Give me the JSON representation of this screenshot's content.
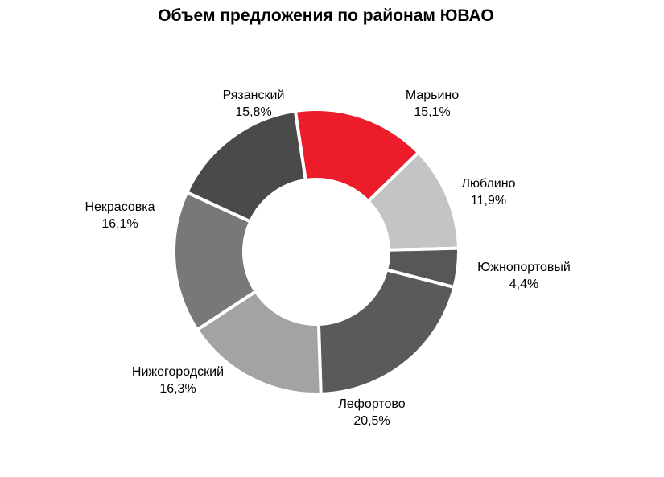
{
  "chart_data": {
    "type": "pie",
    "subtype": "donut",
    "title": "Объем предложения по районам ЮВАО",
    "slices": [
      {
        "label": "Марьино",
        "value": 15.1,
        "value_label": "15,1%",
        "color": "#ED1C2A"
      },
      {
        "label": "Люблино",
        "value": 11.9,
        "value_label": "11,9%",
        "color": "#C4C4C4"
      },
      {
        "label": "Южнопортовый",
        "value": 4.4,
        "value_label": "4,4%",
        "color": "#575757"
      },
      {
        "label": "Лефортово",
        "value": 20.5,
        "value_label": "20,5%",
        "color": "#5A5A5A"
      },
      {
        "label": "Нижегородский",
        "value": 16.3,
        "value_label": "16,3%",
        "color": "#A3A3A3"
      },
      {
        "label": "Некрасовка",
        "value": 16.1,
        "value_label": "16,1%",
        "color": "#787878"
      },
      {
        "label": "Рязанский",
        "value": 15.8,
        "value_label": "15,8%",
        "color": "#4A4A4A"
      }
    ],
    "legend": "none"
  }
}
